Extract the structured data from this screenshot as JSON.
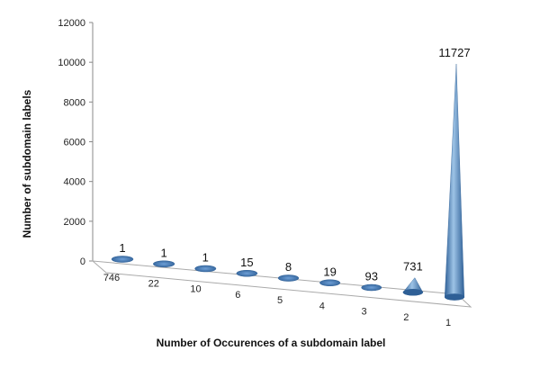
{
  "chart_data": {
    "type": "bar",
    "style": "3d-cone",
    "title": "",
    "xlabel": "Number of Occurences of a subdomain label",
    "ylabel": "Number of subdomain labels",
    "ylim": [
      0,
      12000
    ],
    "y_ticks": [
      "0",
      "2000",
      "4000",
      "6000",
      "8000",
      "10000",
      "12000"
    ],
    "y_tick_values": [
      0,
      2000,
      4000,
      6000,
      8000,
      10000,
      12000
    ],
    "grid": false,
    "legend": "none",
    "categories": [
      "746",
      "22",
      "10",
      "6",
      "5",
      "4",
      "3",
      "2",
      "1"
    ],
    "values": [
      1,
      1,
      1,
      15,
      8,
      19,
      93,
      731,
      11727
    ],
    "data_labels": [
      "1",
      "1",
      "1",
      "15",
      "8",
      "19",
      "93",
      "731",
      "11727"
    ],
    "colors": {
      "cone": "#4f81bd",
      "cone_light": "#9dc3e6",
      "cone_dark": "#2e5f96",
      "axis": "#888888"
    }
  }
}
